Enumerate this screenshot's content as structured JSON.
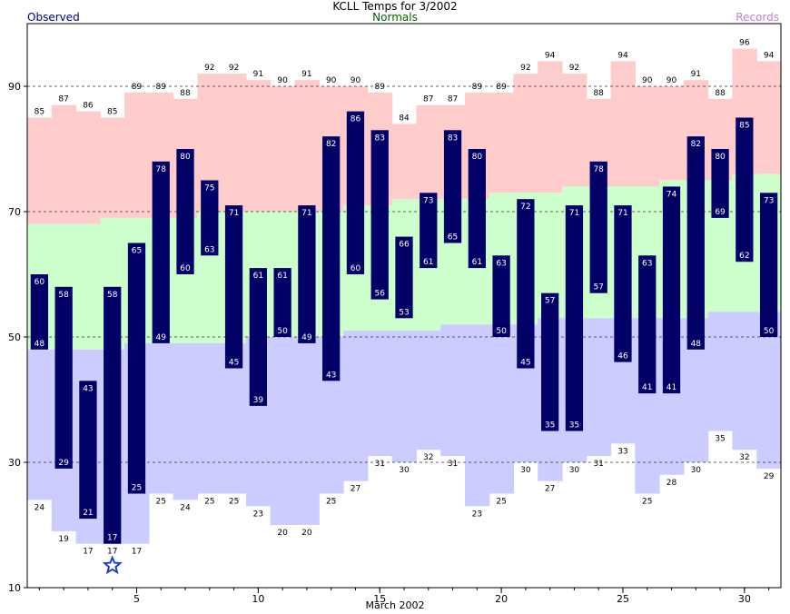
{
  "header": {
    "title": "KCLL Temps for 3/2002",
    "observed_label": "Observed",
    "normals_label": "Normals",
    "records_label": "Records"
  },
  "colors": {
    "record_high_band": "#ffcccc",
    "normal_band": "#ccffcc",
    "record_low_band": "#ccccff",
    "observed_bar": "#000066",
    "observed_text": "#000080",
    "normals_text": "#006400",
    "records_text": "#c080d0",
    "star": "#1a3fcc"
  },
  "chart_data": {
    "type": "bar",
    "title": "KCLL Temps for 3/2002",
    "xlabel": "March 2002",
    "ylabel": "",
    "xlim": [
      0.5,
      31.5
    ],
    "ylim": [
      10,
      100
    ],
    "x_ticks": [
      5,
      10,
      15,
      20,
      25,
      30
    ],
    "y_ticks": [
      10,
      30,
      50,
      70,
      90
    ],
    "gridlines_y": [
      30,
      50,
      70,
      90
    ],
    "days": [
      1,
      2,
      3,
      4,
      5,
      6,
      7,
      8,
      9,
      10,
      11,
      12,
      13,
      14,
      15,
      16,
      17,
      18,
      19,
      20,
      21,
      22,
      23,
      24,
      25,
      26,
      27,
      28,
      29,
      30,
      31
    ],
    "series": [
      {
        "name": "Observed high",
        "values": [
          60,
          58,
          43,
          58,
          65,
          78,
          80,
          75,
          71,
          61,
          61,
          71,
          82,
          86,
          83,
          66,
          73,
          83,
          80,
          63,
          72,
          57,
          71,
          78,
          71,
          63,
          74,
          82,
          80,
          85,
          73
        ]
      },
      {
        "name": "Observed low",
        "values": [
          48,
          29,
          21,
          17,
          25,
          49,
          60,
          63,
          45,
          39,
          50,
          49,
          43,
          60,
          56,
          53,
          61,
          65,
          61,
          50,
          45,
          35,
          35,
          57,
          46,
          41,
          41,
          48,
          69,
          62,
          50
        ]
      },
      {
        "name": "Record high",
        "values": [
          85,
          87,
          86,
          85,
          89,
          89,
          88,
          92,
          92,
          91,
          90,
          91,
          90,
          90,
          89,
          84,
          87,
          87,
          89,
          89,
          92,
          94,
          92,
          88,
          94,
          90,
          90,
          91,
          88,
          96,
          94
        ]
      },
      {
        "name": "Record low",
        "values": [
          24,
          19,
          17,
          17,
          17,
          25,
          24,
          25,
          25,
          23,
          20,
          20,
          25,
          27,
          31,
          30,
          32,
          31,
          23,
          25,
          30,
          27,
          30,
          31,
          33,
          25,
          28,
          30,
          35,
          32,
          29
        ]
      },
      {
        "name": "Normal high",
        "values": [
          68,
          68,
          68,
          69,
          69,
          69,
          69,
          70,
          70,
          70,
          70,
          70,
          70,
          71,
          71,
          72,
          72,
          72,
          72,
          73,
          73,
          73,
          74,
          74,
          74,
          74,
          75,
          75,
          75,
          76,
          76
        ]
      },
      {
        "name": "Normal low",
        "values": [
          48,
          48,
          48,
          48,
          49,
          49,
          49,
          49,
          49,
          50,
          50,
          50,
          50,
          51,
          51,
          51,
          51,
          52,
          52,
          52,
          52,
          53,
          53,
          53,
          53,
          53,
          53,
          53,
          54,
          54,
          54
        ]
      }
    ],
    "record_marker": {
      "day": 4,
      "value": 13.5
    }
  }
}
